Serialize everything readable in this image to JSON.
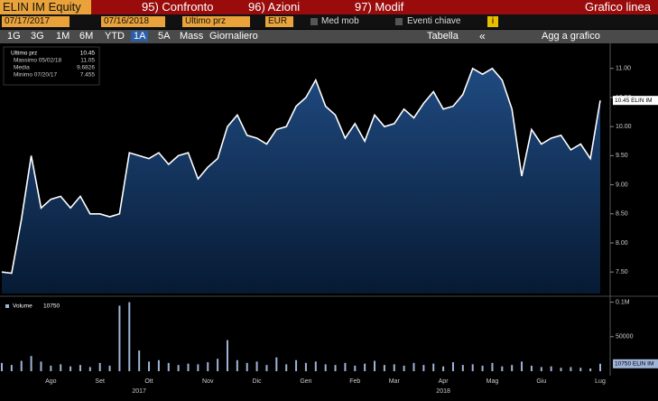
{
  "toolbar": {
    "security": "ELIN IM Equity",
    "menu": [
      "95) Confronto",
      "96) Azioni",
      "97) Modif"
    ],
    "chart_kind": "Grafico linea",
    "start_date": "07/17/2017",
    "end_date": "07/16/2018",
    "field": "Ultimo prz",
    "currency": "EUR",
    "checks": [
      "Med mob",
      "Eventi chiave"
    ],
    "info": "i",
    "periods": [
      "1G",
      "3G",
      "1M",
      "6M",
      "YTD",
      "1A",
      "5A",
      "Mass"
    ],
    "frequency": "Giornaliero",
    "table": "Tabella",
    "collapse": "«",
    "add": "Agg a grafico"
  },
  "chart_data": {
    "type": "line",
    "categories": [
      null,
      null,
      null,
      null,
      null,
      "Ago",
      null,
      null,
      null,
      null,
      "Set",
      null,
      null,
      null,
      null,
      "Ott",
      null,
      null,
      null,
      null,
      null,
      "Nov",
      null,
      null,
      null,
      null,
      "Dic",
      null,
      null,
      null,
      null,
      "Gen",
      null,
      null,
      null,
      null,
      "Feb",
      null,
      null,
      null,
      "Mar",
      null,
      null,
      null,
      null,
      "Apr",
      null,
      null,
      null,
      null,
      "Mag",
      null,
      null,
      null,
      null,
      "Giu",
      null,
      null,
      null,
      null,
      null,
      "Lug"
    ],
    "years": [
      null,
      null,
      null,
      null,
      null,
      null,
      null,
      null,
      null,
      null,
      null,
      null,
      null,
      null,
      "2017",
      null,
      null,
      null,
      null,
      null,
      null,
      null,
      null,
      null,
      null,
      null,
      null,
      null,
      null,
      null,
      null,
      null,
      null,
      null,
      null,
      null,
      null,
      null,
      null,
      null,
      null,
      null,
      null,
      null,
      null,
      "2018",
      null,
      null,
      null,
      null,
      null,
      null,
      null,
      null,
      null,
      null,
      null,
      null,
      null,
      null,
      null,
      null
    ],
    "series": [
      {
        "name": "Ultimo prz",
        "color": "#ffffff",
        "values": [
          7.5,
          7.48,
          8.4,
          9.5,
          8.6,
          8.75,
          8.8,
          8.6,
          8.8,
          8.5,
          8.5,
          8.45,
          8.5,
          9.55,
          9.5,
          9.45,
          9.55,
          9.35,
          9.5,
          9.55,
          9.1,
          9.3,
          9.45,
          10.0,
          10.2,
          9.85,
          9.8,
          9.7,
          9.95,
          10.0,
          10.35,
          10.5,
          10.8,
          10.35,
          10.2,
          9.8,
          10.05,
          9.75,
          10.2,
          10.0,
          10.05,
          10.3,
          10.15,
          10.4,
          10.6,
          10.3,
          10.35,
          10.55,
          11.0,
          10.9,
          11.0,
          10.8,
          10.3,
          9.15,
          9.95,
          9.7,
          9.8,
          9.85,
          9.6,
          9.7,
          9.45,
          10.45
        ]
      },
      {
        "name": "Volume",
        "color": "#9fb4d8",
        "axis": "y2",
        "values": [
          12000,
          9000,
          15000,
          22000,
          14000,
          8000,
          10000,
          7000,
          9000,
          6000,
          12000,
          8000,
          95000,
          100000,
          30000,
          14000,
          16000,
          12000,
          9000,
          11000,
          10000,
          13000,
          18000,
          45000,
          16000,
          12000,
          14000,
          9000,
          20000,
          10000,
          16000,
          12000,
          14000,
          10000,
          9000,
          12000,
          8000,
          11000,
          15000,
          9000,
          10000,
          8000,
          12000,
          9000,
          11000,
          7000,
          13000,
          9000,
          10000,
          8000,
          12000,
          7000,
          9000,
          14000,
          8000,
          6000,
          7000,
          5000,
          6000,
          5000,
          4000,
          10750
        ]
      }
    ],
    "ylim": [
      7.13,
      11.4
    ],
    "yticks": [
      {
        "value": 7.5,
        "label": "7.50"
      },
      {
        "value": 8,
        "label": "8.00"
      },
      {
        "value": 8.5,
        "label": "8.50"
      },
      {
        "value": 9,
        "label": "9.00"
      },
      {
        "value": 9.5,
        "label": "9.50"
      },
      {
        "value": 10,
        "label": "10.00"
      },
      {
        "value": 10.5,
        "label": "10.50"
      },
      {
        "value": 11,
        "label": "11.00"
      }
    ],
    "y2lim": [
      0,
      106000
    ],
    "y2ticks": [
      50000,
      {
        "value": 100000,
        "label": "0.1M"
      }
    ],
    "price_tag": "10.45 ELIN IM",
    "volume_tag": "10750 ELIN IM",
    "stats": [
      {
        "label": "Massimo 05/02/18",
        "value": 11.05
      },
      {
        "label": "Media",
        "value": 9.6826
      },
      {
        "label": "Minimo 07/20/17",
        "value": 7.455
      }
    ],
    "grid": false
  }
}
